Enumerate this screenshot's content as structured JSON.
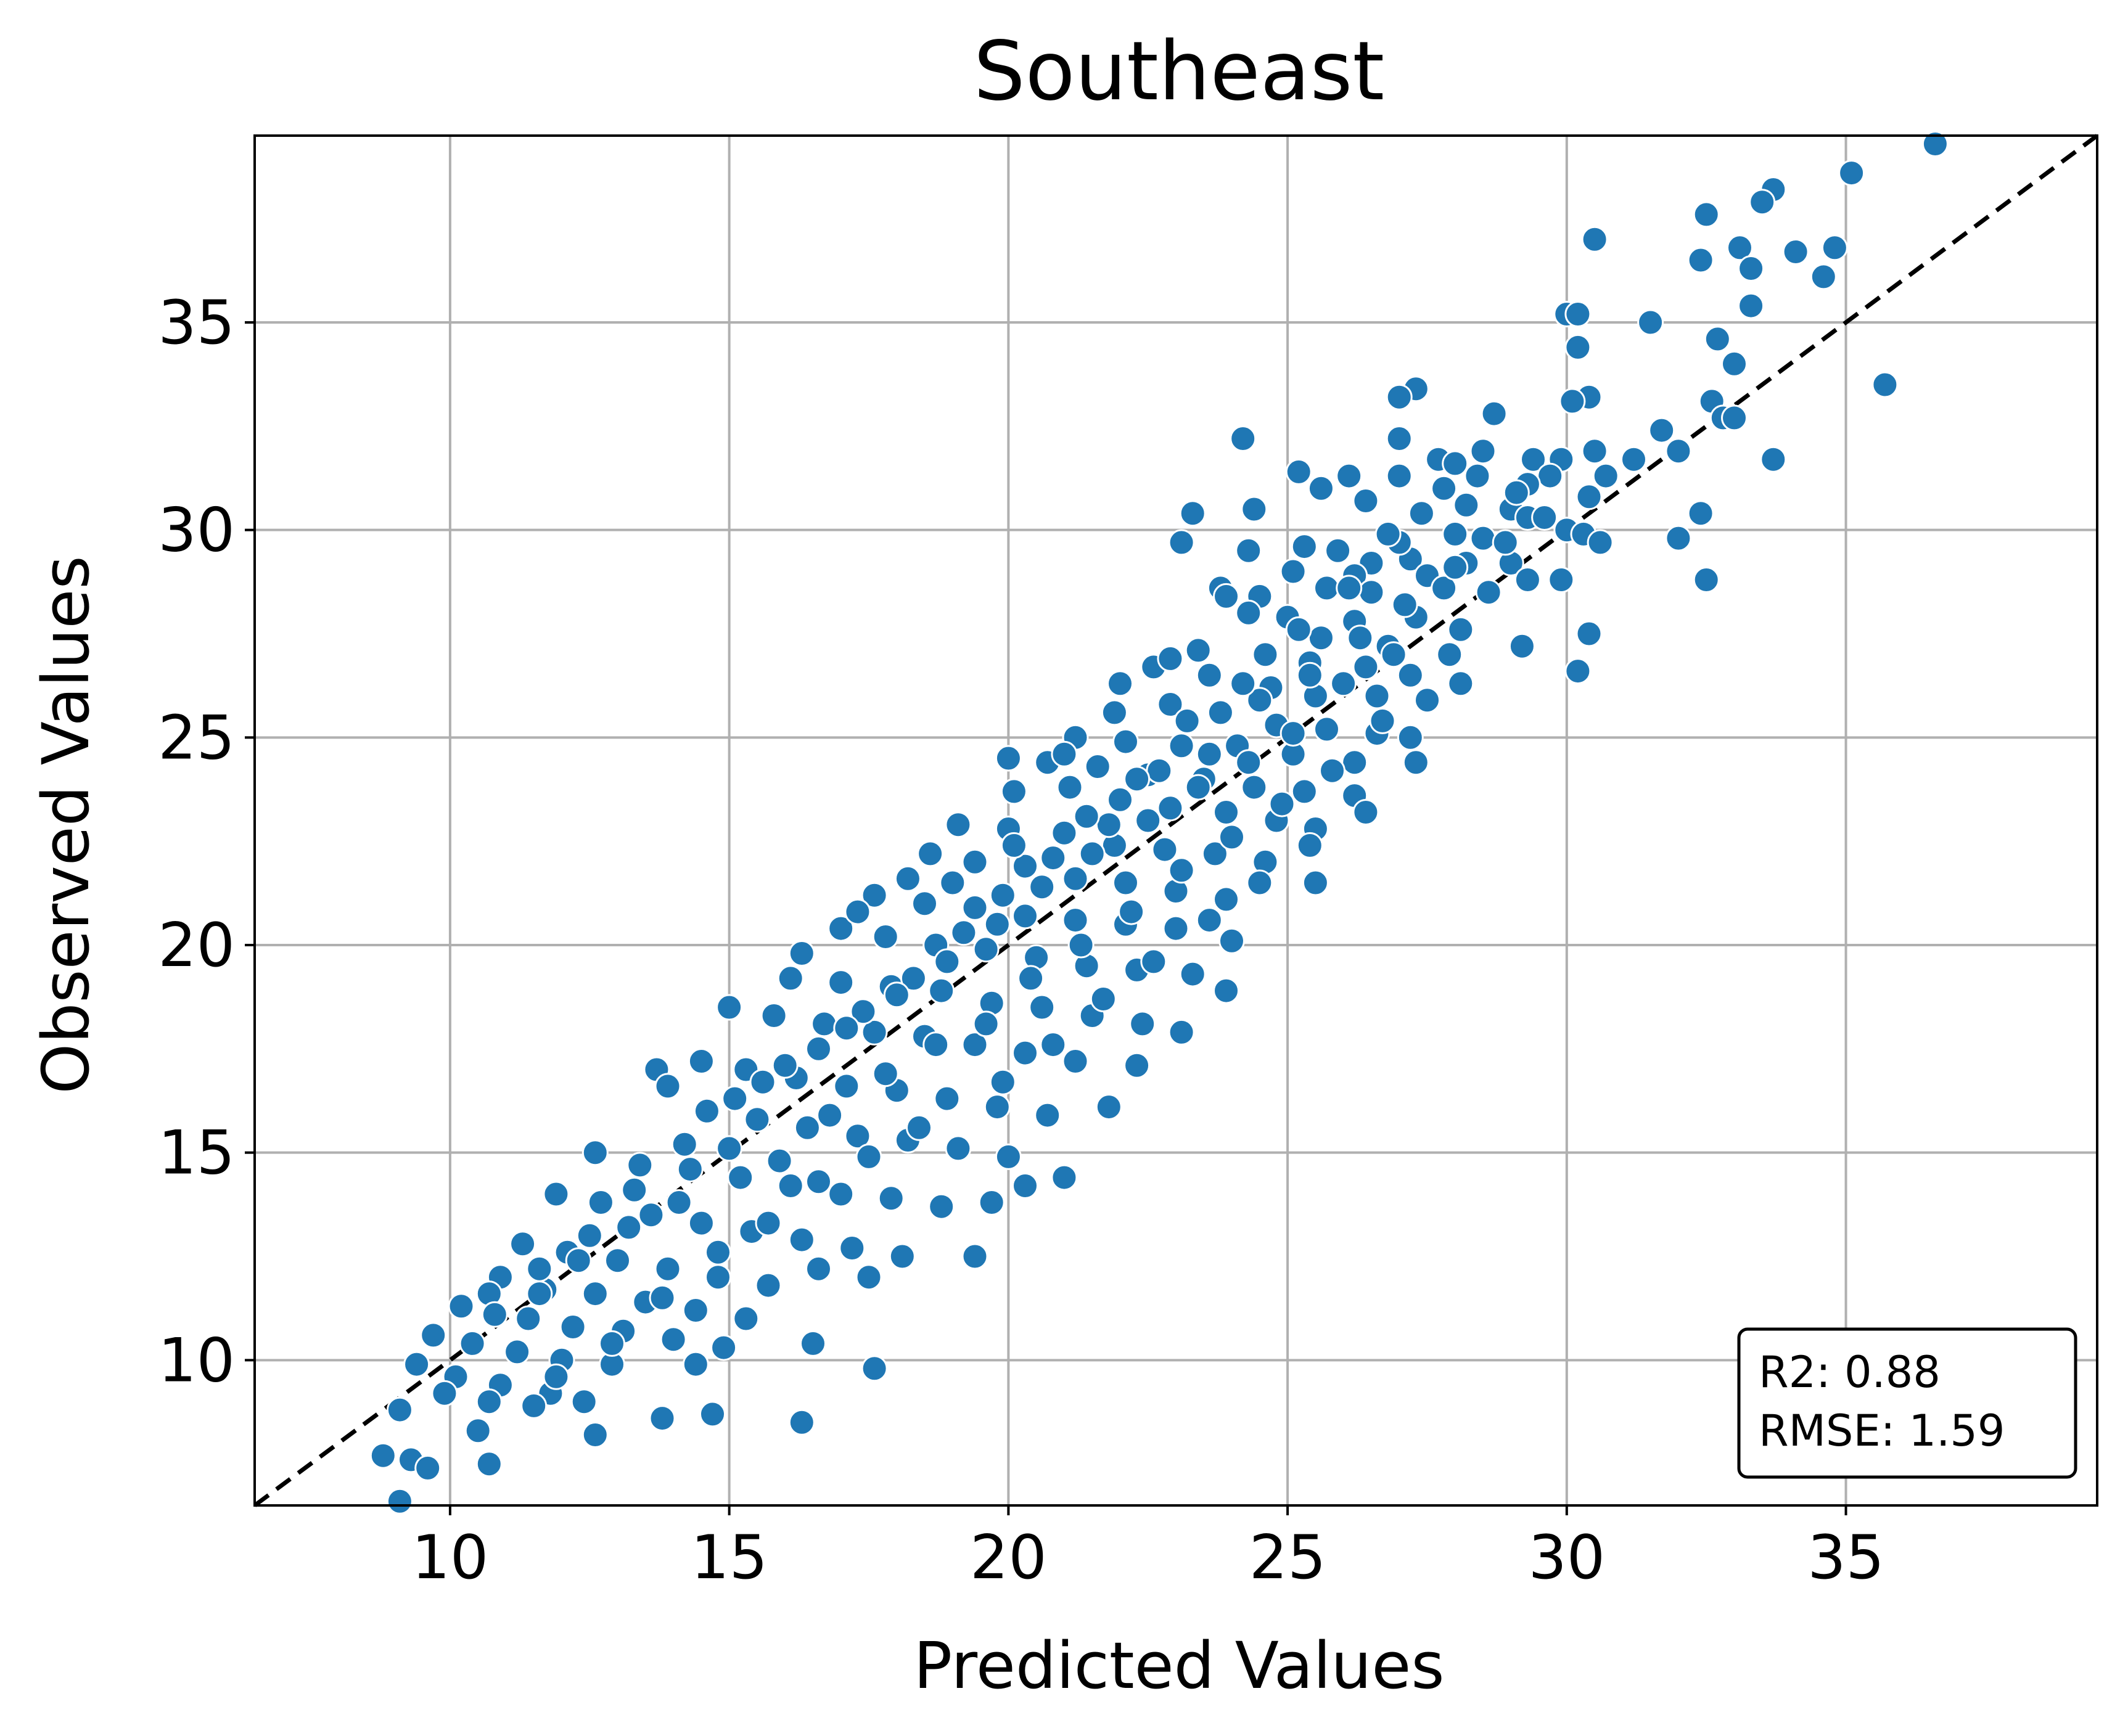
{
  "chart_data": {
    "type": "scatter",
    "title": "Southeast",
    "xlabel": "Predicted Values",
    "ylabel": "Observed Values",
    "xlim": [
      6.5,
      39.5
    ],
    "ylim": [
      6.5,
      39.5
    ],
    "xticks": [
      10,
      15,
      20,
      25,
      30,
      35
    ],
    "yticks": [
      10,
      15,
      20,
      25,
      30,
      35
    ],
    "xtick_labels": [
      "10",
      "15",
      "20",
      "25",
      "30",
      "35"
    ],
    "ytick_labels": [
      "10",
      "15",
      "20",
      "25",
      "30",
      "35"
    ],
    "grid": true,
    "reference_line": {
      "style": "dashed",
      "color": "#000000",
      "from": [
        6.5,
        6.5
      ],
      "to": [
        39.5,
        39.5
      ]
    },
    "marker_color": "#1f77b4",
    "stats_box": {
      "lines": [
        "R2: 0.88",
        "RMSE: 1.59"
      ],
      "placement": "bottom-right"
    },
    "points": [
      [
        36.6,
        39.3
      ],
      [
        35.1,
        38.6
      ],
      [
        33.7,
        38.2
      ],
      [
        33.5,
        37.9
      ],
      [
        32.5,
        37.6
      ],
      [
        30.5,
        37.0
      ],
      [
        33.1,
        36.8
      ],
      [
        34.1,
        36.7
      ],
      [
        34.8,
        36.8
      ],
      [
        32.4,
        36.5
      ],
      [
        33.3,
        36.3
      ],
      [
        34.6,
        36.1
      ],
      [
        33.3,
        35.4
      ],
      [
        30.0,
        35.2
      ],
      [
        30.2,
        35.2
      ],
      [
        31.5,
        35.0
      ],
      [
        32.7,
        34.6
      ],
      [
        30.2,
        34.4
      ],
      [
        33.0,
        34.0
      ],
      [
        35.7,
        33.5
      ],
      [
        27.3,
        33.4
      ],
      [
        27.0,
        33.2
      ],
      [
        30.4,
        33.2
      ],
      [
        30.1,
        33.1
      ],
      [
        32.6,
        33.1
      ],
      [
        32.8,
        32.7
      ],
      [
        33.0,
        32.7
      ],
      [
        28.7,
        32.8
      ],
      [
        31.7,
        32.4
      ],
      [
        24.2,
        32.2
      ],
      [
        27.0,
        32.2
      ],
      [
        30.5,
        31.9
      ],
      [
        32.0,
        31.9
      ],
      [
        31.2,
        31.7
      ],
      [
        33.7,
        31.7
      ],
      [
        28.5,
        31.9
      ],
      [
        27.7,
        31.7
      ],
      [
        29.4,
        31.7
      ],
      [
        29.9,
        31.7
      ],
      [
        28.0,
        31.6
      ],
      [
        25.2,
        31.4
      ],
      [
        26.1,
        31.3
      ],
      [
        27.0,
        31.3
      ],
      [
        28.4,
        31.3
      ],
      [
        29.7,
        31.3
      ],
      [
        30.7,
        31.3
      ],
      [
        25.6,
        31.0
      ],
      [
        27.8,
        31.0
      ],
      [
        29.3,
        31.1
      ],
      [
        30.4,
        30.8
      ],
      [
        23.3,
        30.4
      ],
      [
        24.4,
        30.5
      ],
      [
        26.4,
        30.7
      ],
      [
        27.4,
        30.4
      ],
      [
        29.0,
        30.5
      ],
      [
        32.4,
        30.4
      ],
      [
        29.3,
        30.3
      ],
      [
        30.0,
        30.0
      ],
      [
        30.3,
        29.9
      ],
      [
        28.0,
        29.9
      ],
      [
        28.5,
        29.8
      ],
      [
        23.1,
        29.7
      ],
      [
        24.3,
        29.5
      ],
      [
        25.3,
        29.6
      ],
      [
        26.5,
        29.2
      ],
      [
        27.2,
        29.3
      ],
      [
        28.2,
        29.2
      ],
      [
        29.0,
        29.2
      ],
      [
        30.6,
        29.7
      ],
      [
        32.0,
        29.8
      ],
      [
        25.1,
        29.0
      ],
      [
        26.2,
        28.9
      ],
      [
        27.5,
        28.9
      ],
      [
        29.3,
        28.8
      ],
      [
        29.9,
        28.8
      ],
      [
        32.5,
        28.8
      ],
      [
        23.8,
        28.6
      ],
      [
        24.5,
        28.4
      ],
      [
        25.7,
        28.6
      ],
      [
        26.5,
        28.5
      ],
      [
        27.8,
        28.6
      ],
      [
        28.6,
        28.5
      ],
      [
        24.3,
        28.0
      ],
      [
        25.0,
        27.9
      ],
      [
        26.2,
        27.8
      ],
      [
        27.3,
        27.9
      ],
      [
        28.1,
        27.6
      ],
      [
        25.6,
        27.4
      ],
      [
        26.8,
        27.2
      ],
      [
        27.9,
        27.0
      ],
      [
        29.2,
        27.2
      ],
      [
        30.4,
        27.5
      ],
      [
        23.4,
        27.1
      ],
      [
        24.6,
        27.0
      ],
      [
        25.4,
        26.8
      ],
      [
        26.4,
        26.7
      ],
      [
        27.2,
        26.5
      ],
      [
        28.1,
        26.3
      ],
      [
        30.2,
        26.6
      ],
      [
        22.6,
        26.7
      ],
      [
        23.6,
        26.5
      ],
      [
        24.7,
        26.2
      ],
      [
        25.5,
        26.0
      ],
      [
        26.6,
        26.0
      ],
      [
        27.5,
        25.9
      ],
      [
        21.9,
        25.6
      ],
      [
        22.9,
        25.8
      ],
      [
        23.8,
        25.6
      ],
      [
        24.8,
        25.3
      ],
      [
        25.7,
        25.2
      ],
      [
        26.6,
        25.1
      ],
      [
        21.2,
        25.0
      ],
      [
        22.1,
        24.9
      ],
      [
        23.1,
        24.8
      ],
      [
        24.1,
        24.8
      ],
      [
        25.1,
        24.6
      ],
      [
        26.2,
        24.4
      ],
      [
        27.2,
        25.0
      ],
      [
        20.0,
        24.5
      ],
      [
        20.7,
        24.4
      ],
      [
        21.6,
        24.3
      ],
      [
        22.5,
        24.1
      ],
      [
        23.5,
        24.0
      ],
      [
        24.4,
        23.8
      ],
      [
        25.3,
        23.7
      ],
      [
        26.2,
        23.6
      ],
      [
        20.1,
        23.7
      ],
      [
        21.1,
        23.8
      ],
      [
        22.0,
        23.5
      ],
      [
        22.9,
        23.3
      ],
      [
        23.9,
        23.2
      ],
      [
        24.8,
        23.0
      ],
      [
        25.5,
        22.8
      ],
      [
        19.1,
        22.9
      ],
      [
        20.0,
        22.8
      ],
      [
        21.0,
        22.7
      ],
      [
        21.9,
        22.4
      ],
      [
        22.8,
        22.3
      ],
      [
        23.7,
        22.2
      ],
      [
        24.6,
        22.0
      ],
      [
        18.6,
        22.2
      ],
      [
        19.4,
        22.0
      ],
      [
        20.3,
        21.9
      ],
      [
        21.2,
        21.6
      ],
      [
        22.1,
        21.5
      ],
      [
        23.0,
        21.3
      ],
      [
        23.9,
        21.1
      ],
      [
        25.5,
        21.5
      ],
      [
        17.6,
        21.2
      ],
      [
        18.5,
        21.0
      ],
      [
        19.4,
        20.9
      ],
      [
        20.3,
        20.7
      ],
      [
        21.2,
        20.6
      ],
      [
        22.1,
        20.5
      ],
      [
        23.0,
        20.4
      ],
      [
        24.0,
        20.1
      ],
      [
        17.0,
        20.4
      ],
      [
        17.8,
        20.2
      ],
      [
        18.7,
        20.0
      ],
      [
        19.6,
        19.9
      ],
      [
        20.5,
        19.7
      ],
      [
        21.4,
        19.5
      ],
      [
        22.3,
        19.4
      ],
      [
        23.3,
        19.3
      ],
      [
        16.1,
        19.2
      ],
      [
        17.0,
        19.1
      ],
      [
        17.9,
        19.0
      ],
      [
        18.8,
        18.9
      ],
      [
        19.7,
        18.6
      ],
      [
        20.6,
        18.5
      ],
      [
        21.5,
        18.3
      ],
      [
        22.4,
        18.1
      ],
      [
        23.9,
        18.9
      ],
      [
        15.0,
        18.5
      ],
      [
        15.8,
        18.3
      ],
      [
        16.7,
        18.1
      ],
      [
        17.6,
        17.9
      ],
      [
        18.5,
        17.8
      ],
      [
        19.4,
        17.6
      ],
      [
        20.3,
        17.4
      ],
      [
        21.2,
        17.2
      ],
      [
        22.3,
        17.1
      ],
      [
        23.1,
        17.9
      ],
      [
        13.7,
        17.0
      ],
      [
        14.5,
        17.2
      ],
      [
        15.3,
        17.0
      ],
      [
        16.2,
        16.8
      ],
      [
        17.1,
        16.6
      ],
      [
        18.0,
        16.5
      ],
      [
        18.9,
        16.3
      ],
      [
        19.8,
        16.1
      ],
      [
        20.7,
        15.9
      ],
      [
        21.8,
        16.1
      ],
      [
        13.9,
        16.6
      ],
      [
        14.6,
        16.0
      ],
      [
        15.5,
        15.8
      ],
      [
        16.4,
        15.6
      ],
      [
        17.3,
        15.4
      ],
      [
        18.2,
        15.3
      ],
      [
        19.1,
        15.1
      ],
      [
        20.0,
        14.9
      ],
      [
        21.0,
        14.4
      ],
      [
        12.6,
        15.0
      ],
      [
        13.4,
        14.7
      ],
      [
        14.3,
        14.6
      ],
      [
        15.2,
        14.4
      ],
      [
        16.1,
        14.2
      ],
      [
        17.0,
        14.0
      ],
      [
        17.9,
        13.9
      ],
      [
        18.8,
        13.7
      ],
      [
        19.7,
        13.8
      ],
      [
        20.3,
        14.2
      ],
      [
        11.9,
        14.0
      ],
      [
        12.7,
        13.8
      ],
      [
        13.6,
        13.5
      ],
      [
        14.5,
        13.3
      ],
      [
        15.4,
        13.1
      ],
      [
        16.3,
        12.9
      ],
      [
        17.2,
        12.7
      ],
      [
        18.1,
        12.5
      ],
      [
        19.4,
        12.5
      ],
      [
        11.3,
        12.8
      ],
      [
        12.1,
        12.6
      ],
      [
        13.0,
        12.4
      ],
      [
        13.9,
        12.2
      ],
      [
        14.8,
        12.0
      ],
      [
        15.7,
        11.8
      ],
      [
        16.6,
        12.2
      ],
      [
        17.5,
        12.0
      ],
      [
        10.9,
        12.0
      ],
      [
        11.7,
        11.7
      ],
      [
        12.6,
        11.6
      ],
      [
        13.5,
        11.4
      ],
      [
        14.4,
        11.2
      ],
      [
        15.3,
        11.0
      ],
      [
        10.2,
        11.3
      ],
      [
        10.7,
        11.6
      ],
      [
        11.4,
        11.0
      ],
      [
        12.2,
        10.8
      ],
      [
        13.1,
        10.7
      ],
      [
        14.0,
        10.5
      ],
      [
        14.9,
        10.3
      ],
      [
        16.5,
        10.4
      ],
      [
        9.7,
        10.6
      ],
      [
        10.4,
        10.4
      ],
      [
        11.2,
        10.2
      ],
      [
        12.0,
        10.0
      ],
      [
        12.9,
        9.9
      ],
      [
        14.4,
        9.9
      ],
      [
        17.6,
        9.8
      ],
      [
        9.4,
        9.9
      ],
      [
        10.1,
        9.6
      ],
      [
        10.9,
        9.4
      ],
      [
        11.8,
        9.2
      ],
      [
        12.4,
        9.0
      ],
      [
        9.9,
        9.2
      ],
      [
        10.7,
        9.0
      ],
      [
        11.5,
        8.9
      ],
      [
        9.1,
        8.8
      ],
      [
        10.5,
        8.3
      ],
      [
        12.6,
        8.2
      ],
      [
        13.8,
        8.6
      ],
      [
        14.7,
        8.7
      ],
      [
        16.3,
        8.5
      ],
      [
        8.8,
        7.7
      ],
      [
        9.3,
        7.6
      ],
      [
        9.6,
        7.4
      ],
      [
        10.7,
        7.5
      ],
      [
        9.1,
        6.6
      ],
      [
        10.8,
        11.1
      ],
      [
        11.6,
        12.2
      ],
      [
        12.3,
        12.4
      ],
      [
        13.2,
        13.2
      ],
      [
        14.1,
        13.8
      ],
      [
        15.0,
        15.1
      ],
      [
        15.6,
        16.7
      ],
      [
        16.6,
        17.5
      ],
      [
        17.4,
        18.4
      ],
      [
        18.3,
        19.2
      ],
      [
        19.2,
        20.3
      ],
      [
        19.9,
        21.2
      ],
      [
        20.8,
        22.1
      ],
      [
        21.8,
        22.9
      ],
      [
        22.7,
        24.2
      ],
      [
        23.6,
        24.6
      ],
      [
        24.5,
        25.9
      ],
      [
        25.4,
        26.5
      ],
      [
        26.3,
        27.4
      ],
      [
        27.1,
        28.2
      ],
      [
        28.0,
        29.1
      ],
      [
        15.9,
        14.8
      ],
      [
        16.8,
        15.9
      ],
      [
        17.8,
        16.9
      ],
      [
        18.7,
        17.6
      ],
      [
        19.6,
        18.1
      ],
      [
        20.4,
        19.2
      ],
      [
        21.3,
        20.0
      ],
      [
        22.2,
        20.8
      ],
      [
        23.1,
        21.8
      ],
      [
        24.0,
        22.6
      ],
      [
        24.9,
        23.4
      ],
      [
        25.8,
        24.2
      ],
      [
        26.7,
        25.4
      ],
      [
        15.1,
        16.3
      ],
      [
        16.0,
        17.1
      ],
      [
        17.1,
        18.0
      ],
      [
        18.0,
        18.8
      ],
      [
        18.9,
        19.6
      ],
      [
        19.8,
        20.5
      ],
      [
        20.6,
        21.4
      ],
      [
        21.5,
        22.2
      ],
      [
        22.5,
        23.0
      ],
      [
        23.4,
        23.8
      ],
      [
        24.3,
        24.4
      ],
      [
        25.1,
        25.1
      ],
      [
        26.0,
        26.3
      ],
      [
        26.9,
        27.0
      ],
      [
        14.2,
        15.2
      ],
      [
        13.3,
        14.1
      ],
      [
        12.5,
        13.0
      ],
      [
        11.6,
        11.6
      ],
      [
        18.2,
        21.6
      ],
      [
        17.3,
        20.8
      ],
      [
        16.3,
        19.8
      ],
      [
        21.4,
        23.1
      ],
      [
        22.3,
        24.0
      ],
      [
        23.2,
        25.4
      ],
      [
        24.2,
        26.3
      ],
      [
        25.2,
        27.6
      ],
      [
        26.1,
        28.6
      ],
      [
        27.0,
        29.7
      ],
      [
        19.9,
        16.7
      ],
      [
        20.8,
        17.6
      ],
      [
        21.7,
        18.7
      ],
      [
        22.6,
        19.6
      ],
      [
        23.6,
        20.6
      ],
      [
        24.5,
        21.5
      ],
      [
        25.4,
        22.4
      ],
      [
        26.4,
        23.2
      ],
      [
        27.3,
        24.4
      ],
      [
        17.5,
        14.9
      ],
      [
        18.4,
        15.6
      ],
      [
        16.6,
        14.3
      ],
      [
        15.7,
        13.3
      ],
      [
        14.8,
        12.6
      ],
      [
        13.8,
        11.5
      ],
      [
        12.9,
        10.4
      ],
      [
        11.9,
        9.6
      ],
      [
        28.2,
        30.6
      ],
      [
        29.1,
        30.9
      ],
      [
        28.9,
        29.7
      ],
      [
        29.6,
        30.3
      ],
      [
        26.8,
        29.9
      ],
      [
        22.0,
        26.3
      ],
      [
        23.9,
        28.4
      ],
      [
        21.0,
        24.6
      ],
      [
        20.1,
        22.4
      ],
      [
        19.0,
        21.5
      ],
      [
        22.9,
        26.9
      ],
      [
        25.9,
        29.5
      ]
    ]
  }
}
